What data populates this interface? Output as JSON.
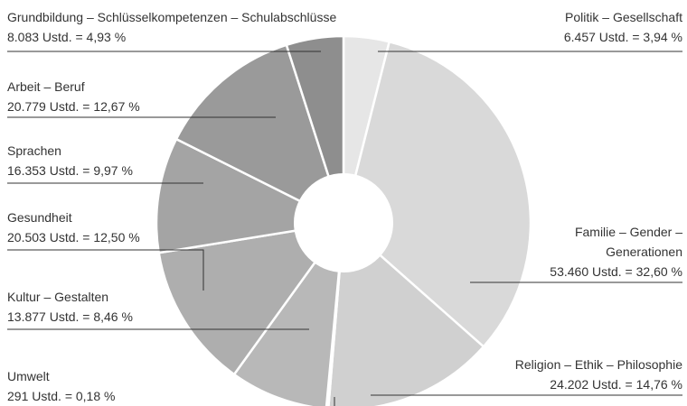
{
  "chart_data": {
    "type": "pie",
    "categories": [
      "Politik – Gesellschaft",
      "Familie – Gender – Generationen",
      "Religion – Ethik – Philosophie",
      "Umwelt",
      "Kultur – Gestalten",
      "Gesundheit",
      "Sprachen",
      "Arbeit – Beruf",
      "Grundbildung – Schlüsselkompetenzen – Schulabschlüsse"
    ],
    "values": [
      3.94,
      32.6,
      14.76,
      0.18,
      8.46,
      12.5,
      9.97,
      12.67,
      4.93
    ],
    "value_labels": [
      "6.457 Ustd. = 3,94 %",
      "53.460 Ustd. = 32,60 %",
      "24.202 Ustd. = 14,76 %",
      "291 Ustd. = 0,18 %",
      "13.877 Ustd. = 8,46 %",
      "20.503 Ustd. = 12,50 %",
      "16.353 Ustd. = 9,97 %",
      "20.779 Ustd. = 12,67 %",
      "8.083 Ustd. = 4,93 %"
    ],
    "colors": [
      "#e6e6e6",
      "#d9d9d9",
      "#d0d0d0",
      "#bcbcbc",
      "#b8b8b8",
      "#aeaeae",
      "#a4a4a4",
      "#9a9a9a",
      "#8e8e8e"
    ]
  }
}
